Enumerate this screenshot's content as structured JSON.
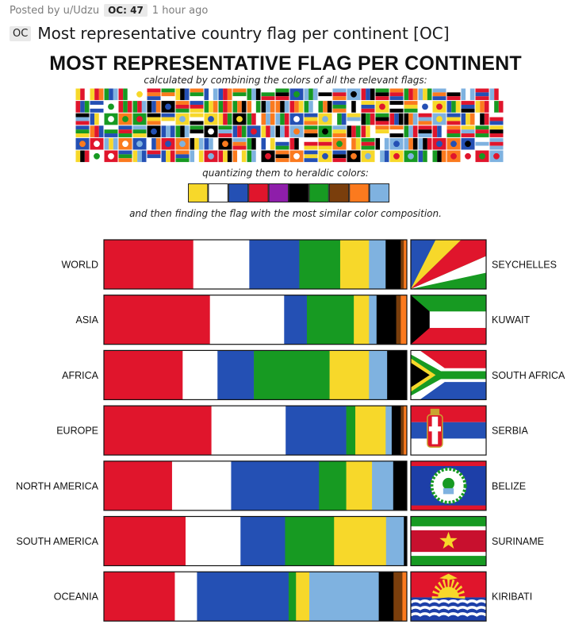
{
  "post": {
    "posted_by": "Posted by u/Udzu",
    "oc_badge": "OC: 47",
    "time": "1 hour ago",
    "oc_tag": "OC",
    "title": "Most representative country flag per continent [OC]"
  },
  "chart_data": {
    "type": "bar",
    "stacked": true,
    "orientation": "horizontal",
    "title": "MOST REPRESENTATIVE FLAG PER CONTINENT",
    "caption_1": "calculated by combining the colors of all the relevant flags:",
    "caption_2": "quantizing them to heraldic colors:",
    "caption_3": "and then finding the flag with the most similar color composition.",
    "palette": [
      "#f7d82a",
      "#ffffff",
      "#2450b4",
      "#e0152c",
      "#8e1eaa",
      "#000000",
      "#179a22",
      "#7a3e0c",
      "#fb7a1e",
      "#7fb2e0"
    ],
    "rows": [
      {
        "continent": "WORLD",
        "flag": "SEYCHELLES",
        "segments": [
          {
            "color": "#e0152c",
            "value": 29.5
          },
          {
            "color": "#ffffff",
            "value": 18.5
          },
          {
            "color": "#2450b4",
            "value": 16.5
          },
          {
            "color": "#179a22",
            "value": 13.5
          },
          {
            "color": "#f7d82a",
            "value": 9.5
          },
          {
            "color": "#7fb2e0",
            "value": 5.5
          },
          {
            "color": "#000000",
            "value": 5
          },
          {
            "color": "#7a3e0c",
            "value": 1
          },
          {
            "color": "#fb7a1e",
            "value": 1
          }
        ]
      },
      {
        "continent": "ASIA",
        "flag": "KUWAIT",
        "segments": [
          {
            "color": "#e0152c",
            "value": 35
          },
          {
            "color": "#ffffff",
            "value": 24.5
          },
          {
            "color": "#2450b4",
            "value": 7.5
          },
          {
            "color": "#179a22",
            "value": 15.5
          },
          {
            "color": "#f7d82a",
            "value": 5
          },
          {
            "color": "#7fb2e0",
            "value": 2.5
          },
          {
            "color": "#000000",
            "value": 6.5
          },
          {
            "color": "#7a3e0c",
            "value": 1.5
          },
          {
            "color": "#fb7a1e",
            "value": 2
          }
        ]
      },
      {
        "continent": "AFRICA",
        "flag": "SOUTH AFRICA",
        "segments": [
          {
            "color": "#e0152c",
            "value": 26
          },
          {
            "color": "#ffffff",
            "value": 11.5
          },
          {
            "color": "#2450b4",
            "value": 12
          },
          {
            "color": "#179a22",
            "value": 25
          },
          {
            "color": "#f7d82a",
            "value": 13
          },
          {
            "color": "#7fb2e0",
            "value": 6
          },
          {
            "color": "#000000",
            "value": 6.5
          }
        ]
      },
      {
        "continent": "EUROPE",
        "flag": "SERBIA",
        "segments": [
          {
            "color": "#e0152c",
            "value": 35.5
          },
          {
            "color": "#ffffff",
            "value": 24.5
          },
          {
            "color": "#2450b4",
            "value": 20
          },
          {
            "color": "#179a22",
            "value": 3
          },
          {
            "color": "#f7d82a",
            "value": 10
          },
          {
            "color": "#7fb2e0",
            "value": 2
          },
          {
            "color": "#000000",
            "value": 3
          },
          {
            "color": "#7a3e0c",
            "value": 1
          },
          {
            "color": "#fb7a1e",
            "value": 1
          }
        ]
      },
      {
        "continent": "NORTH AMERICA",
        "flag": "BELIZE",
        "segments": [
          {
            "color": "#e0152c",
            "value": 22.5
          },
          {
            "color": "#ffffff",
            "value": 19.5
          },
          {
            "color": "#2450b4",
            "value": 29
          },
          {
            "color": "#179a22",
            "value": 9
          },
          {
            "color": "#f7d82a",
            "value": 8.5
          },
          {
            "color": "#7fb2e0",
            "value": 7
          },
          {
            "color": "#000000",
            "value": 4.5
          }
        ]
      },
      {
        "continent": "SOUTH AMERICA",
        "flag": "SURINAME",
        "segments": [
          {
            "color": "#e0152c",
            "value": 27.5
          },
          {
            "color": "#ffffff",
            "value": 18.5
          },
          {
            "color": "#2450b4",
            "value": 15
          },
          {
            "color": "#179a22",
            "value": 16.5
          },
          {
            "color": "#f7d82a",
            "value": 17.5
          },
          {
            "color": "#7fb2e0",
            "value": 6
          },
          {
            "color": "#000000",
            "value": 1
          }
        ]
      },
      {
        "continent": "OCEANIA",
        "flag": "KIRIBATI",
        "segments": [
          {
            "color": "#e0152c",
            "value": 24
          },
          {
            "color": "#ffffff",
            "value": 7.5
          },
          {
            "color": "#2450b4",
            "value": 31
          },
          {
            "color": "#179a22",
            "value": 2.5
          },
          {
            "color": "#f7d82a",
            "value": 4.5
          },
          {
            "color": "#7fb2e0",
            "value": 23.5
          },
          {
            "color": "#000000",
            "value": 5
          },
          {
            "color": "#7a3e0c",
            "value": 3
          },
          {
            "color": "#fb7a1e",
            "value": 1.5
          }
        ]
      }
    ]
  }
}
